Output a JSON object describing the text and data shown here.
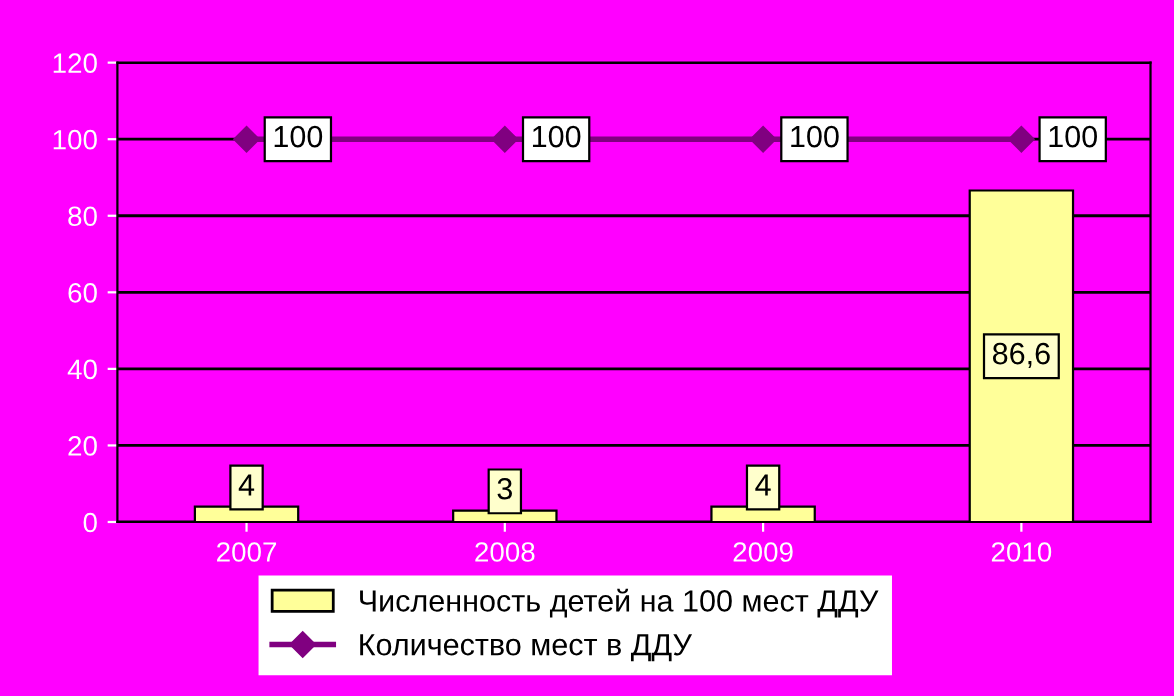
{
  "chart_data": {
    "type": "bar",
    "categories": [
      "2007",
      "2008",
      "2009",
      "2010"
    ],
    "series": [
      {
        "name": "Численность детей на 100 мест ДДУ",
        "color": "#ffff99",
        "values": [
          4,
          3,
          4,
          86.6
        ],
        "value_labels": [
          "4",
          "3",
          "4",
          "86,6"
        ]
      },
      {
        "name": "Количество мест в ДДУ",
        "type": "line",
        "color": "#800080",
        "values": [
          100,
          100,
          100,
          100
        ],
        "value_labels": [
          "100",
          "100",
          "100",
          "100"
        ]
      }
    ],
    "ylim": [
      0,
      120
    ],
    "yticks": [
      0,
      20,
      40,
      60,
      80,
      100,
      120
    ],
    "grid": "y",
    "legend": "bottom",
    "marker": "diamond"
  }
}
